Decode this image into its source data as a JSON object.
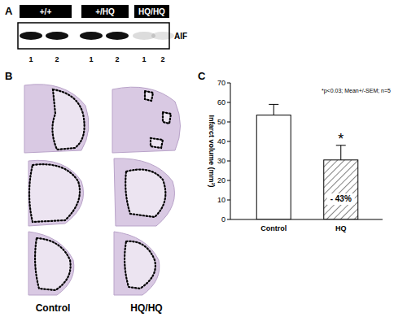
{
  "panel_a": {
    "label": "A",
    "groups": [
      "+/+",
      "+/HQ",
      "HQ/HQ"
    ],
    "lanes": [
      "1",
      "2",
      "1",
      "2",
      "1",
      "2"
    ],
    "protein": "AIF",
    "band_levels": [
      1,
      1,
      1,
      1,
      0.15,
      0.12
    ]
  },
  "panel_b": {
    "label": "B",
    "columns": [
      "Control",
      "HQ/HQ"
    ]
  },
  "chart_data": {
    "type": "bar",
    "panel_label": "C",
    "categories": [
      "Control",
      "HQ"
    ],
    "values": [
      53.5,
      30.5
    ],
    "errors": [
      5.5,
      7.5
    ],
    "colors": [
      "#ffffff",
      "#ffffff"
    ],
    "y_label": "Infarct volume (mm³)",
    "ylim": [
      0,
      70
    ],
    "yticks": [
      0,
      10,
      20,
      30,
      40,
      50,
      60,
      70
    ],
    "grid": false,
    "annotations": [
      "*p<0.03; Mean+/-SEM; n=5",
      "*",
      "- 43%"
    ]
  }
}
